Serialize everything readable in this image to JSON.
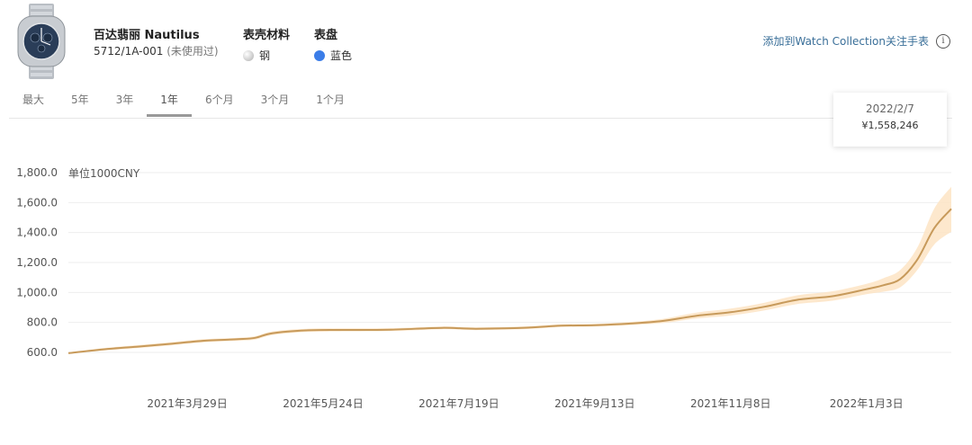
{
  "product": {
    "name": "百达翡丽 Nautilus",
    "ref": "5712/1A-001",
    "condition": "(未使用过)"
  },
  "specs": [
    {
      "title": "表壳材料",
      "value": "钢",
      "swatch_color": "#d9d9d9"
    },
    {
      "title": "表盘",
      "value": "蓝色",
      "swatch_color": "#3b7de8"
    }
  ],
  "collect_link": {
    "label": "添加到Watch Collection关注手表",
    "icon": "info-icon"
  },
  "tabs": [
    {
      "label": "最大"
    },
    {
      "label": "5年"
    },
    {
      "label": "3年"
    },
    {
      "label": "1年",
      "active": true
    },
    {
      "label": "6个月"
    },
    {
      "label": "3个月"
    },
    {
      "label": "1个月"
    }
  ],
  "tooltip": {
    "date": "2022/2/7",
    "value": "¥1,558,246"
  },
  "chart_data": {
    "type": "area",
    "ylabel": "单位1000CNY",
    "ylim": [
      600,
      1800
    ],
    "yticks": [
      "600.0",
      "800.0",
      "1,000.0",
      "1,200.0",
      "1,400.0",
      "1,600.0",
      "1,800.0"
    ],
    "ytick_values": [
      600,
      800,
      1000,
      1200,
      1400,
      1600,
      1800
    ],
    "x_range": [
      "2021-02-08",
      "2022-02-07"
    ],
    "xticks": [
      {
        "date": "2021-03-29",
        "label": "2021年3月29日"
      },
      {
        "date": "2021-05-24",
        "label": "2021年5月24日"
      },
      {
        "date": "2021-07-19",
        "label": "2021年7月19日"
      },
      {
        "date": "2021-09-13",
        "label": "2021年9月13日"
      },
      {
        "date": "2021-11-08",
        "label": "2021年11月8日"
      },
      {
        "date": "2022-01-03",
        "label": "2022年1月3日"
      }
    ],
    "grid": true,
    "line_color": "#c79a5b",
    "band_color": "#fde4c4",
    "series": [
      {
        "points": [
          {
            "x": "2021-02-08",
            "y": 595,
            "low": 590,
            "high": 600
          },
          {
            "x": "2021-02-22",
            "y": 620,
            "low": 612,
            "high": 628
          },
          {
            "x": "2021-03-08",
            "y": 638,
            "low": 628,
            "high": 648
          },
          {
            "x": "2021-03-22",
            "y": 657,
            "low": 647,
            "high": 667
          },
          {
            "x": "2021-04-05",
            "y": 678,
            "low": 668,
            "high": 688
          },
          {
            "x": "2021-04-19",
            "y": 688,
            "low": 678,
            "high": 698
          },
          {
            "x": "2021-04-26",
            "y": 697,
            "low": 686,
            "high": 708
          },
          {
            "x": "2021-05-03",
            "y": 728,
            "low": 716,
            "high": 740
          },
          {
            "x": "2021-05-17",
            "y": 747,
            "low": 736,
            "high": 758
          },
          {
            "x": "2021-05-31",
            "y": 750,
            "low": 740,
            "high": 760
          },
          {
            "x": "2021-06-21",
            "y": 752,
            "low": 742,
            "high": 762
          },
          {
            "x": "2021-07-12",
            "y": 764,
            "low": 755,
            "high": 773
          },
          {
            "x": "2021-07-26",
            "y": 758,
            "low": 749,
            "high": 767
          },
          {
            "x": "2021-08-16",
            "y": 765,
            "low": 756,
            "high": 774
          },
          {
            "x": "2021-08-30",
            "y": 778,
            "low": 769,
            "high": 787
          },
          {
            "x": "2021-09-13",
            "y": 782,
            "low": 773,
            "high": 791
          },
          {
            "x": "2021-09-27",
            "y": 792,
            "low": 782,
            "high": 802
          },
          {
            "x": "2021-10-11",
            "y": 810,
            "low": 796,
            "high": 824
          },
          {
            "x": "2021-10-25",
            "y": 845,
            "low": 826,
            "high": 866
          },
          {
            "x": "2021-11-08",
            "y": 868,
            "low": 846,
            "high": 892
          },
          {
            "x": "2021-11-22",
            "y": 905,
            "low": 880,
            "high": 932
          },
          {
            "x": "2021-12-06",
            "y": 952,
            "low": 924,
            "high": 982
          },
          {
            "x": "2021-12-20",
            "y": 975,
            "low": 945,
            "high": 1008
          },
          {
            "x": "2022-01-03",
            "y": 1022,
            "low": 988,
            "high": 1058
          },
          {
            "x": "2022-01-10",
            "y": 1048,
            "low": 1005,
            "high": 1095
          },
          {
            "x": "2022-01-17",
            "y": 1090,
            "low": 1035,
            "high": 1150
          },
          {
            "x": "2022-01-24",
            "y": 1220,
            "low": 1150,
            "high": 1300
          },
          {
            "x": "2022-01-31",
            "y": 1430,
            "low": 1320,
            "high": 1560
          },
          {
            "x": "2022-02-07",
            "y": 1558,
            "low": 1405,
            "high": 1705
          }
        ]
      }
    ]
  }
}
